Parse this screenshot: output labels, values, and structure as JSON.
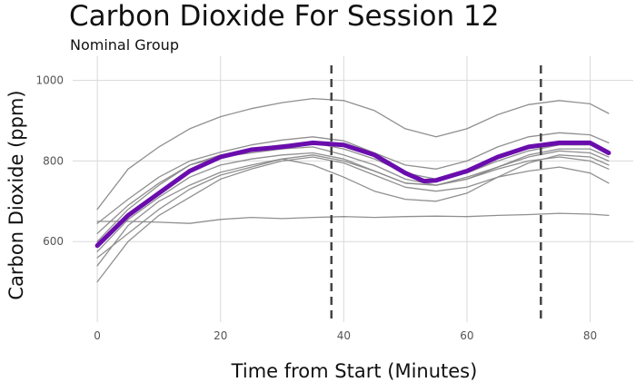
{
  "chart_data": {
    "type": "line",
    "title": "Carbon Dioxide For Session 12",
    "subtitle": "Nominal Group",
    "xlabel": "Time from Start (Minutes)",
    "ylabel": "Carbon Dioxide (ppm)",
    "xlim": [
      -4,
      87
    ],
    "ylim": [
      400,
      1060
    ],
    "x_ticks": [
      0,
      20,
      40,
      60,
      80
    ],
    "y_ticks": [
      600,
      800,
      1000
    ],
    "grid": true,
    "vlines": [
      38,
      72
    ],
    "colors": {
      "individual": "#8a8a8a",
      "mean": "#6a0dad",
      "vline": "#444444",
      "grid": "#d9d9d9"
    },
    "series": [
      {
        "role": "individual",
        "x": [
          0,
          5,
          10,
          15,
          20,
          25,
          30,
          35,
          40,
          45,
          50,
          55,
          60,
          65,
          70,
          75,
          80,
          83
        ],
        "y": [
          680,
          780,
          835,
          880,
          910,
          930,
          945,
          955,
          950,
          925,
          880,
          860,
          880,
          915,
          940,
          950,
          942,
          918
        ]
      },
      {
        "role": "individual",
        "x": [
          0,
          5,
          10,
          15,
          20,
          25,
          30,
          35,
          40,
          45,
          50,
          55,
          60,
          65,
          70,
          75,
          80,
          83
        ],
        "y": [
          645,
          705,
          760,
          800,
          822,
          840,
          852,
          860,
          850,
          820,
          790,
          780,
          800,
          835,
          860,
          870,
          865,
          845
        ]
      },
      {
        "role": "individual",
        "x": [
          0,
          5,
          10,
          15,
          20,
          25,
          30,
          35,
          40,
          45,
          50,
          55,
          60,
          65,
          70,
          75,
          80,
          83
        ],
        "y": [
          540,
          640,
          700,
          740,
          772,
          790,
          805,
          815,
          800,
          775,
          745,
          740,
          760,
          785,
          810,
          825,
          820,
          800
        ]
      },
      {
        "role": "individual",
        "x": [
          0,
          5,
          10,
          15,
          20,
          25,
          30,
          35,
          40,
          45,
          50,
          55,
          60,
          65,
          70,
          75,
          80,
          83
        ],
        "y": [
          500,
          600,
          665,
          710,
          755,
          780,
          800,
          810,
          795,
          765,
          735,
          725,
          735,
          760,
          775,
          785,
          770,
          745
        ]
      },
      {
        "role": "individual",
        "x": [
          0,
          5,
          10,
          15,
          20,
          25,
          30,
          35,
          40,
          45,
          50,
          55,
          60,
          65,
          70,
          75,
          80,
          83
        ],
        "y": [
          600,
          680,
          740,
          790,
          810,
          820,
          830,
          835,
          815,
          790,
          755,
          740,
          755,
          785,
          815,
          830,
          830,
          810
        ]
      },
      {
        "role": "individual",
        "x": [
          0,
          5,
          10,
          15,
          20,
          25,
          30,
          35,
          40,
          45,
          50,
          55,
          60,
          65,
          70,
          75,
          80,
          83
        ],
        "y": [
          575,
          655,
          710,
          760,
          790,
          805,
          815,
          820,
          805,
          775,
          745,
          740,
          755,
          780,
          800,
          810,
          800,
          780
        ]
      },
      {
        "role": "individual",
        "x": [
          0,
          5,
          10,
          15,
          20,
          25,
          30,
          35,
          40,
          45,
          50,
          55,
          60,
          65,
          70,
          75,
          80,
          83
        ],
        "y": [
          560,
          620,
          680,
          730,
          765,
          785,
          805,
          790,
          760,
          725,
          705,
          700,
          720,
          760,
          795,
          815,
          810,
          790
        ]
      },
      {
        "role": "individual",
        "x": [
          0,
          5,
          10,
          15,
          20,
          25,
          30,
          35,
          40,
          45,
          50,
          55,
          60,
          65,
          70,
          75,
          80,
          83
        ],
        "y": [
          650,
          650,
          648,
          645,
          655,
          660,
          657,
          660,
          662,
          660,
          662,
          663,
          662,
          665,
          667,
          670,
          668,
          665
        ]
      },
      {
        "role": "individual",
        "x": [
          0,
          5,
          10,
          15,
          20,
          25,
          30,
          35,
          40,
          45,
          50,
          55,
          60,
          65,
          70,
          75,
          80,
          83
        ],
        "y": [
          620,
          690,
          745,
          790,
          815,
          830,
          840,
          845,
          830,
          805,
          770,
          755,
          770,
          800,
          825,
          840,
          840,
          820
        ]
      },
      {
        "role": "mean",
        "x": [
          0,
          5,
          10,
          15,
          20,
          25,
          30,
          35,
          40,
          45,
          50,
          53,
          55,
          60,
          65,
          70,
          75,
          80,
          83
        ],
        "y": [
          590,
          665,
          720,
          775,
          810,
          828,
          835,
          845,
          840,
          815,
          770,
          750,
          752,
          775,
          810,
          835,
          845,
          845,
          820
        ]
      }
    ]
  }
}
